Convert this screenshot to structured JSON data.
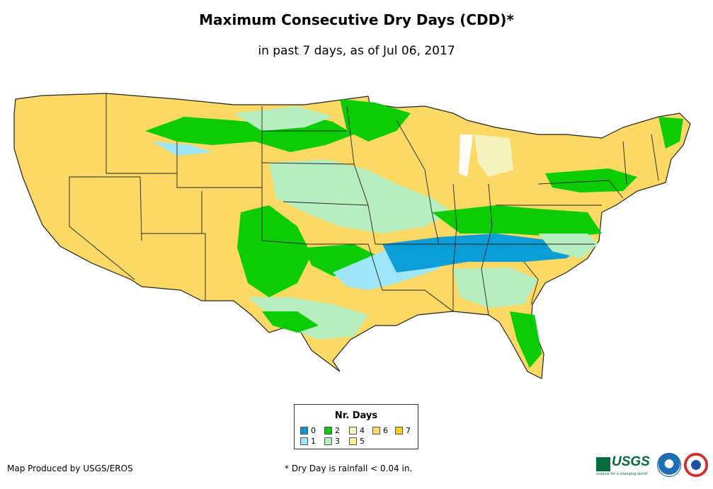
{
  "title": "Maximum Consecutive Dry Days (CDD)*",
  "subtitle": "in past 7 days, as of Jul 06, 2017",
  "legend": {
    "title": "Nr. Days",
    "items": [
      {
        "label": "0",
        "color": "#0099dd"
      },
      {
        "label": "1",
        "color": "#99e6ff"
      },
      {
        "label": "2",
        "color": "#00cc00"
      },
      {
        "label": "3",
        "color": "#b3f0c4"
      },
      {
        "label": "4",
        "color": "#f5f5c0"
      },
      {
        "label": "5",
        "color": "#fbee9a"
      },
      {
        "label": "6",
        "color": "#fbd964"
      },
      {
        "label": "7",
        "color": "#ffcc00"
      }
    ]
  },
  "credit": "Map Produced by USGS/EROS",
  "footnote": "* Dry Day is rainfall < 0.04 in.",
  "logos": {
    "usgs_text": "USGS",
    "usgs_tagline": "science for a changing world",
    "agency_seals": [
      "noaa-seal-icon",
      "nws-seal-icon"
    ]
  },
  "map": {
    "region": "Contiguous United States",
    "colors": {
      "base_dry": "#fbd964",
      "water": "#ffffff",
      "border": "#222222"
    }
  }
}
